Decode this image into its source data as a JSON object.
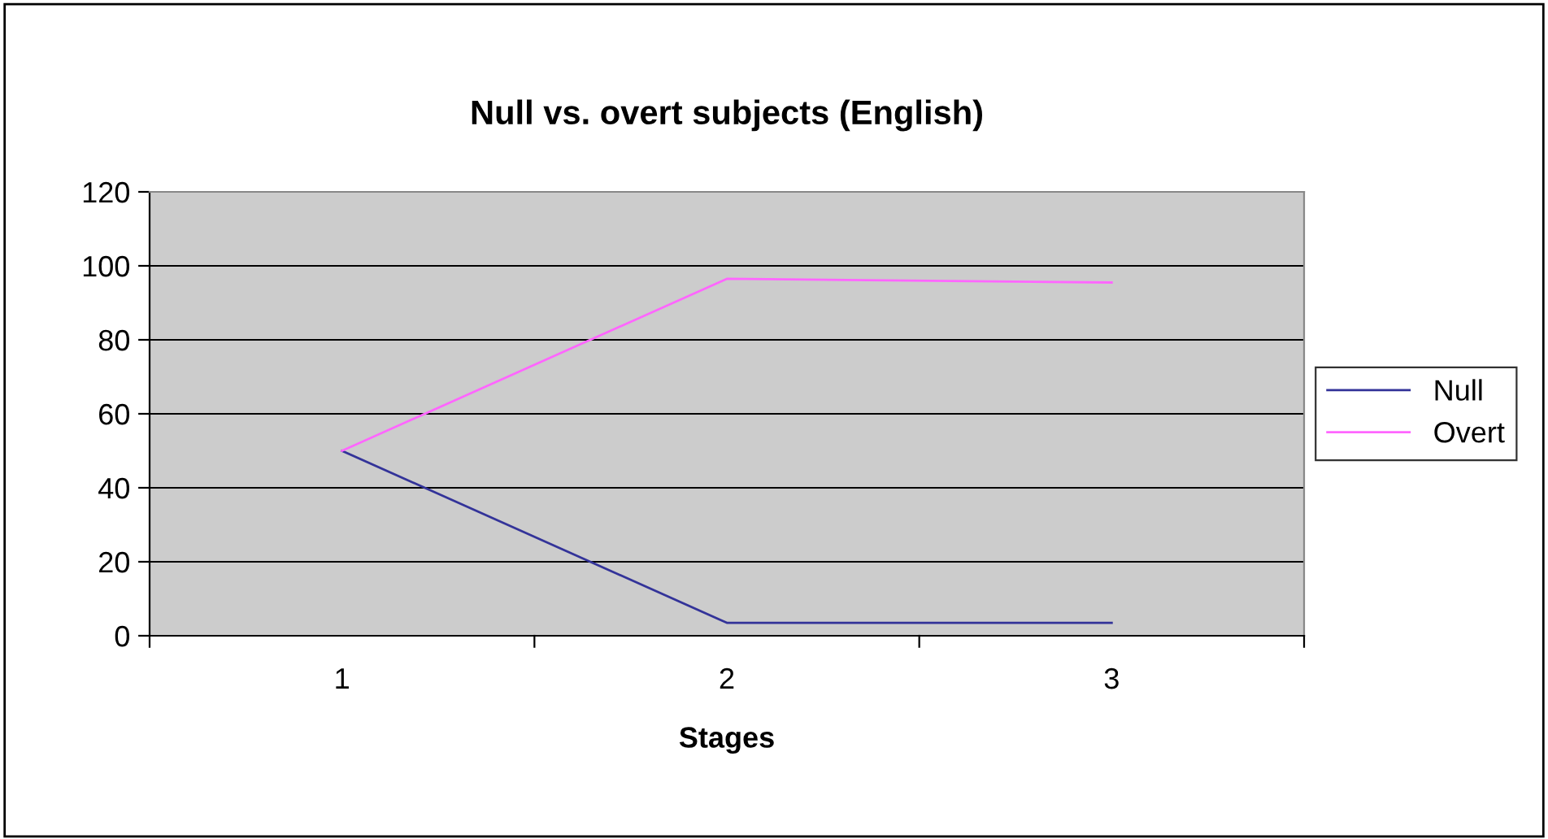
{
  "chart_data": {
    "type": "line",
    "title": "Null vs. overt subjects (English)",
    "xlabel": "Stages",
    "categories": [
      "1",
      "2",
      "3"
    ],
    "series": [
      {
        "name": "Null",
        "color": "#333399",
        "values": [
          50,
          3.5,
          3.5
        ]
      },
      {
        "name": "Overt",
        "color": "#ff66ff",
        "values": [
          50,
          96.5,
          95.5
        ]
      }
    ],
    "ylim": [
      0,
      120
    ],
    "yticks": [
      0,
      20,
      40,
      60,
      80,
      100,
      120
    ],
    "grid": "y",
    "legend": "right"
  }
}
